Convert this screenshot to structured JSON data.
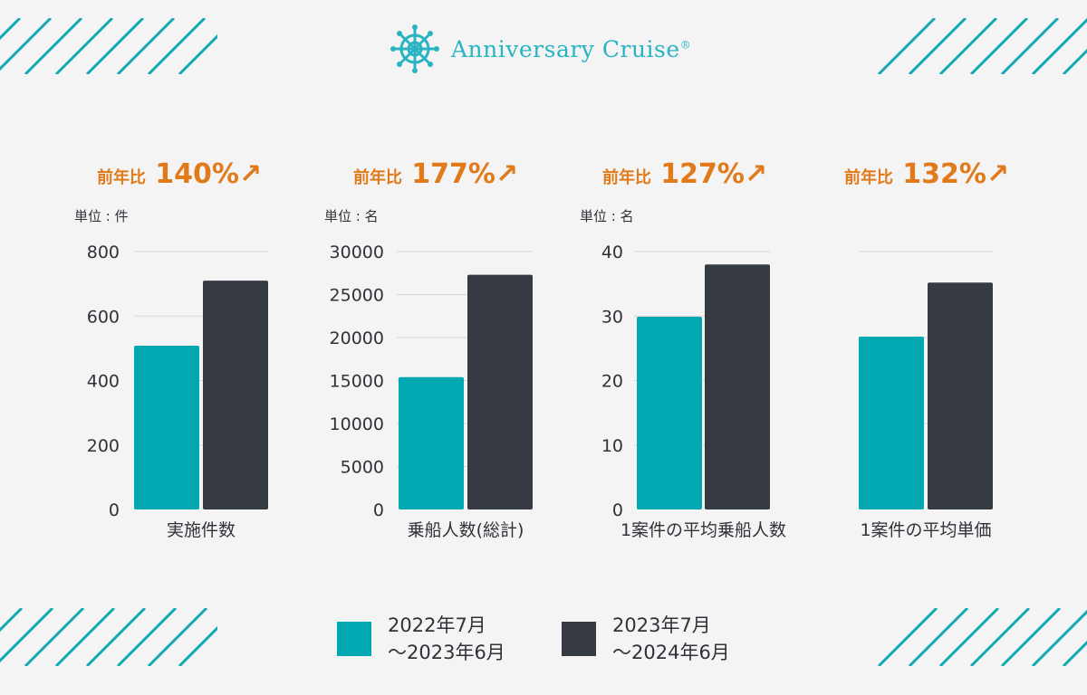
{
  "logo": {
    "text": "Anniversary Cruise",
    "mark": "®",
    "icon": "ship-wheel-icon"
  },
  "colors": {
    "teal": "#00a9b1",
    "dark": "#363a42",
    "orange": "#e07a1a",
    "accent": "#12a9b2"
  },
  "legend": [
    {
      "line1": "2022年7月",
      "line2": "～2023年6月",
      "color": "#00a9b1"
    },
    {
      "line1": "2023年7月",
      "line2": "～2024年6月",
      "color": "#363a42"
    }
  ],
  "chart_data": [
    {
      "type": "bar",
      "growth_prefix": "前年比",
      "growth_value": "140%↗",
      "unit": "単位 : 件",
      "category": "実施件数",
      "ylim": [
        0,
        800
      ],
      "yticks": [
        "0",
        "200",
        "400",
        "600",
        "800"
      ],
      "series": [
        {
          "name": "2022年7月～2023年6月",
          "values": [
            508
          ]
        },
        {
          "name": "2023年7月～2024年6月",
          "values": [
            710
          ]
        }
      ]
    },
    {
      "type": "bar",
      "growth_prefix": "前年比",
      "growth_value": "177%↗",
      "unit": "単位 : 名",
      "category": "乗船人数(総計)",
      "ylim": [
        0,
        30000
      ],
      "yticks": [
        "0",
        "5000",
        "10000",
        "15000",
        "20000",
        "25000",
        "30000"
      ],
      "series": [
        {
          "name": "2022年7月～2023年6月",
          "values": [
            15400
          ]
        },
        {
          "name": "2023年7月～2024年6月",
          "values": [
            27300
          ]
        }
      ]
    },
    {
      "type": "bar",
      "growth_prefix": "前年比",
      "growth_value": "127%↗",
      "unit": "単位 : 名",
      "category": "1案件の平均乗船人数",
      "ylim": [
        0,
        40
      ],
      "yticks": [
        "0",
        "10",
        "20",
        "30",
        "40"
      ],
      "series": [
        {
          "name": "2022年7月～2023年6月",
          "values": [
            29.9
          ]
        },
        {
          "name": "2023年7月～2024年6月",
          "values": [
            38
          ]
        }
      ]
    },
    {
      "type": "bar",
      "growth_prefix": "前年比",
      "growth_value": "132%↗",
      "unit": "",
      "category": "1案件の平均単価",
      "ylim": [
        0,
        100
      ],
      "yticks": [],
      "gridlines": 3,
      "series": [
        {
          "name": "2022年7月～2023年6月",
          "values": [
            67
          ]
        },
        {
          "name": "2023年7月～2024年6月",
          "values": [
            88
          ]
        }
      ]
    }
  ]
}
